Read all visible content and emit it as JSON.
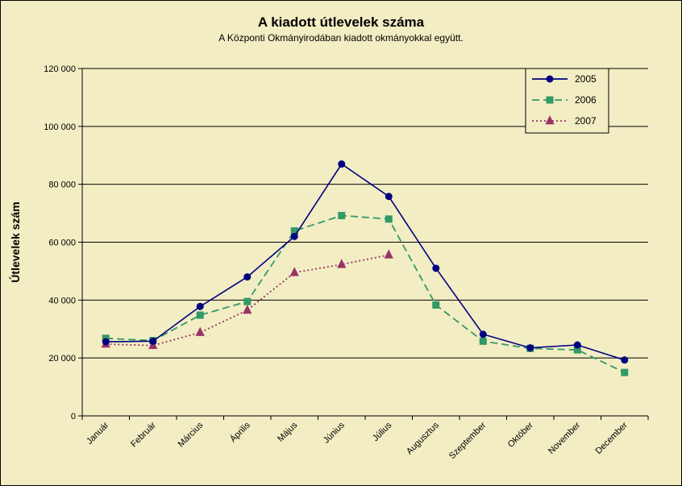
{
  "chart_data": {
    "type": "line",
    "title": "A  kiadott útlevelek száma",
    "subtitle": "A Központi Okmányirodában kiadott okmányokkal együtt.",
    "xlabel": "",
    "ylabel": "Útlevelek szám",
    "ylim": [
      0,
      120000
    ],
    "yticks": [
      0,
      20000,
      40000,
      60000,
      80000,
      100000,
      120000
    ],
    "ytick_labels": [
      "0",
      "20 000",
      "40 000",
      "60 000",
      "80 000",
      "100 000",
      "120 000"
    ],
    "grid": true,
    "legend_position": "top-right",
    "categories": [
      "Január",
      "Február",
      "Március",
      "Április",
      "Május",
      "Június",
      "Július",
      "Augusztus",
      "Szeptember",
      "Október",
      "November",
      "December"
    ],
    "series": [
      {
        "name": "2005",
        "color": "#000080",
        "marker": "circle",
        "dash": "solid",
        "values": [
          25600,
          25800,
          37800,
          48000,
          62000,
          87000,
          75800,
          51000,
          28200,
          23500,
          24500,
          19300
        ]
      },
      {
        "name": "2006",
        "color": "#339966",
        "marker": "square",
        "dash": "dashed",
        "values": [
          26800,
          26000,
          34800,
          39500,
          63900,
          69200,
          68000,
          38300,
          25800,
          23300,
          22800,
          15000
        ]
      },
      {
        "name": "2007",
        "color": "#993366",
        "marker": "triangle",
        "dash": "dotted",
        "values": [
          24800,
          24300,
          28800,
          36500,
          49500,
          52300,
          55600,
          null,
          null,
          null,
          null,
          null
        ]
      }
    ]
  }
}
